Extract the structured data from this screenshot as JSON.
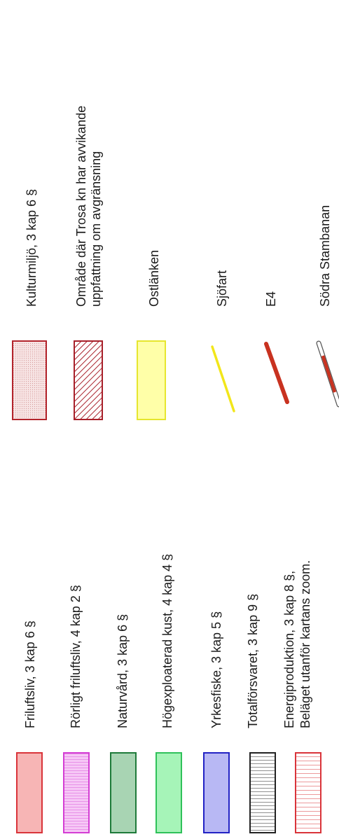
{
  "legend": {
    "left_column": [
      {
        "label": "Friluftsliv, 3 kap 6 §",
        "symbol": "friluftsliv-swatch",
        "fill": "#f7b5b5",
        "stroke": "#d9343a"
      },
      {
        "label": "Rörligt friluftsliv, 4 kap 2 §",
        "symbol": "rorligt-friluftsliv-swatch",
        "fill": "#f6c8f6",
        "stroke": "#d43ed4"
      },
      {
        "label": "Naturvård, 3 kap 6 §",
        "symbol": "naturvard-swatch",
        "fill": "#a8d4b3",
        "stroke": "#1e7a3a"
      },
      {
        "label": "Högexploaterad kust, 4 kap 4 §",
        "symbol": "hogexploaterad-kust-swatch",
        "fill": "#a6f4b8",
        "stroke": "#2fc15a"
      },
      {
        "label": "Yrkesfiske, 3 kap 5 §",
        "symbol": "yrkesfiske-swatch",
        "fill": "#b8b8f4",
        "stroke": "#2222c4"
      },
      {
        "label": "Totalförsvaret, 3 kap 9 §",
        "symbol": "totalforsvaret-swatch",
        "fill": "#ffffff",
        "stroke": "#222222"
      },
      {
        "label_lines": [
          "Energiproduktion, 3 kap 8 §,",
          "Beläget utanför kartans zoom."
        ],
        "symbol": "energiproduktion-swatch",
        "fill": "#ffffff",
        "stroke": "#d9343a"
      }
    ],
    "right_column": [
      {
        "label": "Kulturmiljö, 3 kap 6 §",
        "symbol": "kulturmiljo-swatch",
        "fill": "#f7e4e4",
        "stroke": "#b3242c"
      },
      {
        "label_lines": [
          "Område där Trosa kn har avvikande",
          "uppfattning om avgränsning"
        ],
        "symbol": "trosa-hatched-swatch",
        "fill": "#ffffff",
        "stroke": "#a8202a"
      },
      {
        "label": "Ostlänken",
        "symbol": "ostlanken-swatch",
        "fill": "#ffffa8",
        "stroke": "#e6e62e"
      },
      {
        "label": "Sjöfart",
        "symbol": "sjofart-line",
        "stroke": "#f2e61a"
      },
      {
        "label": "E4",
        "symbol": "e4-line",
        "stroke": "#c83220"
      },
      {
        "label": "Södra Stambanan",
        "symbol": "sodra-stambanan-line",
        "stroke": "#c83220"
      }
    ]
  }
}
